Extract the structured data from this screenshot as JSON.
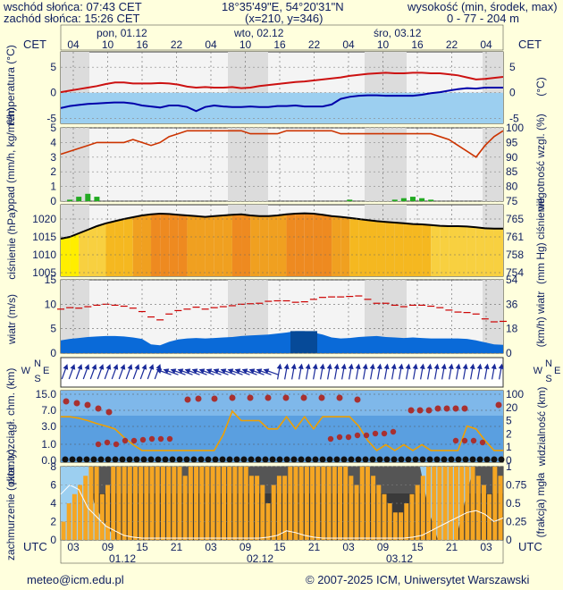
{
  "header": {
    "sunrise": "wschód słońca: 07:43 CET",
    "sunset": "zachód słońca: 15:26 CET",
    "coords": "18°35'49\"E, 54°20'31\"N",
    "grid": "(x=210, y=346)",
    "altitude_label": "wysokość (min, środek, max)",
    "altitude_values": "0 - 77 - 204 m"
  },
  "time_axis": {
    "cet_label": "CET",
    "utc_label": "UTC",
    "cet_ticks": [
      "04",
      "10",
      "16",
      "22",
      "04",
      "10",
      "16",
      "22",
      "04",
      "10",
      "16",
      "22",
      "04"
    ],
    "utc_ticks": [
      "03",
      "09",
      "15",
      "21",
      "03",
      "09",
      "15",
      "21",
      "03",
      "09",
      "15",
      "21",
      "03"
    ],
    "day_labels_top": [
      "pon, 01.12",
      "wto, 02.12",
      "śro, 03.12"
    ],
    "day_labels_bottom": [
      "01.12",
      "02.12",
      "03.12"
    ]
  },
  "footer": {
    "email": "meteo@icm.edu.pl",
    "copyright": "© 2007-2025 ICM, Uniwersytet Warszawski"
  },
  "colors": {
    "temp_line": "#cc1111",
    "dew_line": "#0000aa",
    "humidity_line": "#cc3300",
    "pressure_line": "#000000",
    "wind_gust": "#cc0000",
    "wind_fill": "#0a6ad8",
    "visibility_line": "#f0a000",
    "cloud_bars": "#f5a623"
  },
  "chart_data": [
    {
      "type": "line",
      "name": "temperature",
      "ylabel": "temperatura (°C)",
      "ylabel_right": "(°C)",
      "ylim": [
        -6,
        8
      ],
      "yticks": [
        -5,
        0,
        5
      ],
      "series": [
        {
          "values": [
            0.1,
            0.4,
            0.7,
            1.0,
            1.3,
            1.7,
            2.0,
            2.0,
            1.8,
            1.8,
            1.8,
            1.9,
            1.8,
            1.6,
            1.2,
            1.0,
            1.1,
            1.0,
            1.0,
            1.1,
            0.9,
            1.0,
            1.3,
            1.5,
            1.7,
            1.9,
            2.1,
            2.2,
            2.4,
            2.6,
            2.8,
            3.0,
            3.3,
            3.5,
            3.7,
            3.8,
            3.9,
            3.8,
            3.8,
            3.9,
            3.9,
            3.8,
            3.8,
            3.6,
            3.4,
            3.0,
            2.6,
            2.7,
            2.9,
            3.1
          ]
        },
        {
          "values": [
            -3.0,
            -2.6,
            -2.4,
            -2.2,
            -2.1,
            -2.0,
            -1.9,
            -1.9,
            -2.1,
            -2.5,
            -2.7,
            -2.9,
            -2.5,
            -2.5,
            -2.8,
            -3.6,
            -2.8,
            -2.5,
            -2.7,
            -2.8,
            -2.8,
            -2.7,
            -2.8,
            -2.8,
            -2.6,
            -2.6,
            -2.5,
            -2.7,
            -2.7,
            -2.7,
            -2.3,
            -1.2,
            -0.8,
            -0.6,
            -0.5,
            -0.5,
            -0.6,
            -0.6,
            -0.6,
            -0.6,
            -0.4,
            -0.1,
            0.1,
            0.4,
            0.7,
            0.9,
            0.8,
            1.0,
            1.0,
            1.0
          ]
        }
      ]
    },
    {
      "type": "line",
      "name": "precipitation_humidity",
      "ylabel": "opad (mm/h, kg/m²/h)",
      "ylabel_right": "wilgotność wzgl. (%)",
      "ylim": [
        0,
        5
      ],
      "yticks": [
        0,
        1,
        2,
        3,
        4,
        5
      ],
      "y2lim": [
        75,
        100
      ],
      "y2ticks": [
        75,
        80,
        85,
        90,
        95,
        100
      ],
      "series": [
        {
          "values": [
            91,
            92,
            93,
            94,
            95,
            95,
            95,
            95,
            96,
            95,
            94,
            95,
            97,
            98,
            99,
            99,
            99,
            99,
            99,
            99,
            99,
            98,
            98,
            98,
            98,
            99,
            99,
            99,
            99,
            99,
            99,
            98,
            98,
            98,
            98,
            98,
            98,
            98,
            98,
            98,
            98,
            98,
            97,
            96,
            94,
            92,
            90,
            94,
            97,
            99
          ]
        },
        {
          "values": [
            0,
            0.1,
            0.3,
            0.5,
            0.3,
            0,
            0,
            0,
            0,
            0,
            0,
            0,
            0,
            0,
            0,
            0,
            0,
            0,
            0,
            0,
            0,
            0,
            0,
            0,
            0,
            0,
            0,
            0,
            0,
            0,
            0,
            0,
            0.1,
            0,
            0,
            0,
            0,
            0.1,
            0.2,
            0.3,
            0.2,
            0.1,
            0,
            0,
            0,
            0,
            0,
            0,
            0,
            0
          ]
        }
      ]
    },
    {
      "type": "line",
      "name": "pressure",
      "ylabel": "ciśnienie (hPa)",
      "ylabel_right": "(mm Hg) ciśnienie",
      "ylim": [
        1004,
        1024
      ],
      "yticks": [
        1005,
        1010,
        1015,
        1020
      ],
      "y2ticks": [
        754,
        758,
        761,
        765
      ],
      "series": [
        {
          "values": [
            1014.5,
            1015.0,
            1016.0,
            1017.0,
            1018.0,
            1018.8,
            1019.4,
            1020.0,
            1020.5,
            1021.0,
            1021.3,
            1021.5,
            1021.4,
            1021.2,
            1021.0,
            1020.8,
            1020.6,
            1020.8,
            1021.0,
            1021.2,
            1021.3,
            1021.0,
            1020.8,
            1020.8,
            1021.0,
            1021.3,
            1021.5,
            1021.6,
            1021.5,
            1021.2,
            1020.8,
            1020.6,
            1020.3,
            1020.0,
            1019.7,
            1019.4,
            1019.2,
            1019.0,
            1018.8,
            1018.6,
            1018.5,
            1018.3,
            1018.1,
            1018.0,
            1018.0,
            1017.9,
            1017.7,
            1017.4,
            1017.3,
            1017.3
          ]
        }
      ]
    },
    {
      "type": "line",
      "name": "wind",
      "ylabel": "wiatr (m/s)",
      "ylabel_right": "(km/h) wiatr",
      "ylim": [
        0,
        15
      ],
      "yticks": [
        0,
        5,
        10,
        15
      ],
      "y2ticks": [
        0,
        18,
        36,
        54
      ],
      "series": [
        {
          "values": [
            9.0,
            9.3,
            9.2,
            9.5,
            9.8,
            10.0,
            9.8,
            9.6,
            9.2,
            8.5,
            7.4,
            6.8,
            8.0,
            8.7,
            9.0,
            9.4,
            9.0,
            9.3,
            9.5,
            9.7,
            10.0,
            10.1,
            10.2,
            10.6,
            10.7,
            10.7,
            10.4,
            10.5,
            11.0,
            11.4,
            11.5,
            11.5,
            11.6,
            11.7,
            11.0,
            10.2,
            10.2,
            9.8,
            9.5,
            9.8,
            9.8,
            9.6,
            9.3,
            8.8,
            8.4,
            8.3,
            8.0,
            7.0,
            6.4,
            6.5
          ]
        },
        {
          "values": [
            2.6,
            2.9,
            3.1,
            3.3,
            3.4,
            3.5,
            3.5,
            3.4,
            3.2,
            2.9,
            1.8,
            1.6,
            2.3,
            2.8,
            3.0,
            3.1,
            3.0,
            3.1,
            3.2,
            3.3,
            3.5,
            3.6,
            3.7,
            3.8,
            4.0,
            4.2,
            4.5,
            4.5,
            4.2,
            3.8,
            3.2,
            3.0,
            3.1,
            3.3,
            3.4,
            3.5,
            3.3,
            3.2,
            3.1,
            3.2,
            3.1,
            3.0,
            3.0,
            3.0,
            3.0,
            2.9,
            2.6,
            2.2,
            1.8,
            1.7
          ]
        }
      ]
    },
    {
      "type": "line",
      "name": "cloud_visibility",
      "ylabel": "pion. rozciągł. chm. (km)",
      "ylabel_right": "widzialność (km)",
      "yticks_labels": [
        "0.0",
        "1.0",
        "3.0",
        "7.0",
        "15.0"
      ],
      "y2ticks_labels": [
        "0",
        "1",
        "2",
        "5",
        "20",
        "100"
      ],
      "series": [
        {
          "values": [
            20,
            20,
            18,
            15,
            12,
            10,
            8,
            4,
            2,
            1,
            1,
            1,
            1,
            1,
            1,
            1,
            1,
            1,
            5,
            30,
            15,
            15,
            15,
            8,
            8,
            20,
            8,
            20,
            8,
            20,
            20,
            20,
            20,
            10,
            3,
            1,
            2,
            1,
            2,
            1,
            2,
            1,
            1,
            1,
            1,
            10,
            8,
            3,
            1,
            1
          ]
        }
      ]
    },
    {
      "type": "bar",
      "name": "cloudiness_fog",
      "ylabel": "zachmurzenie (oktanty)",
      "ylabel_right": "(frakcja) mgła",
      "ylim": [
        0,
        8
      ],
      "yticks": [
        0,
        2,
        4,
        6,
        8
      ],
      "y2ticks_labels": [
        "0",
        "0.25",
        "0.5",
        "0.75",
        "1"
      ],
      "series": [
        {
          "values": [
            2,
            4,
            5,
            6,
            7,
            8,
            8,
            5,
            6,
            8,
            8,
            8,
            8,
            8,
            8,
            8,
            8,
            8,
            8,
            8,
            8,
            8,
            7,
            8,
            8,
            8,
            8,
            8,
            8,
            8,
            8,
            8,
            8,
            8,
            7,
            7,
            6,
            4,
            6,
            7,
            7,
            8,
            8,
            8,
            8,
            8,
            8,
            8,
            8,
            8,
            8,
            8,
            7,
            6,
            8,
            8,
            7,
            6,
            5,
            4,
            3,
            3,
            4,
            5,
            6,
            7,
            8,
            8,
            8,
            8,
            8,
            8,
            8,
            8,
            8,
            7,
            6,
            5,
            8,
            7
          ]
        },
        {
          "values": [
            5.0,
            6.0,
            5.5,
            3.5,
            2.5,
            1.5,
            1.0,
            0.5,
            0.3,
            0.2,
            0.2,
            0.2,
            0.2,
            0.2,
            0.2,
            0.2,
            0.2,
            0.2,
            0.2,
            0.2,
            0.2,
            0.2,
            0.2,
            0.3,
            0.5,
            1.0,
            0.8,
            0.5,
            0.3,
            0.2,
            0.2,
            0.2,
            0.2,
            0.2,
            0.2,
            0.2,
            0.2,
            0.2,
            0.2,
            0.3,
            0.5,
            1.0,
            1.5,
            2.0,
            2.5,
            3.0,
            3.2,
            2.8,
            2.0,
            2.4
          ]
        }
      ]
    }
  ]
}
